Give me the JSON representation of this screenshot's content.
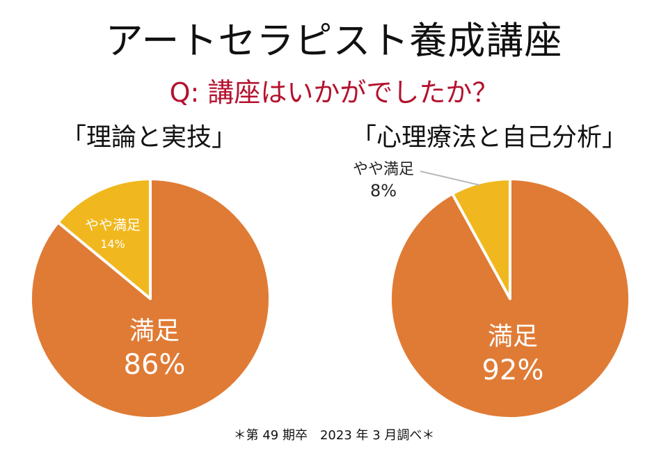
{
  "header": {
    "title": "アートセラピスト養成講座",
    "question": "Q: 講座はいかがでしたか？"
  },
  "chart_data": [
    {
      "type": "pie",
      "title": "「理論と実技」",
      "categories": [
        "満足",
        "やや満足"
      ],
      "values": [
        86,
        14
      ],
      "labels": [
        "86%",
        "14%"
      ],
      "colors": [
        "#e07b35",
        "#f0b81e"
      ]
    },
    {
      "type": "pie",
      "title": "「心理療法と自己分析」",
      "categories": [
        "満足",
        "やや満足"
      ],
      "values": [
        92,
        8
      ],
      "labels": [
        "92%",
        "8%"
      ],
      "colors": [
        "#e07b35",
        "#f0b81e"
      ]
    }
  ],
  "footnote": "＊第 49 期卒　2023 年 3 月調べ＊"
}
